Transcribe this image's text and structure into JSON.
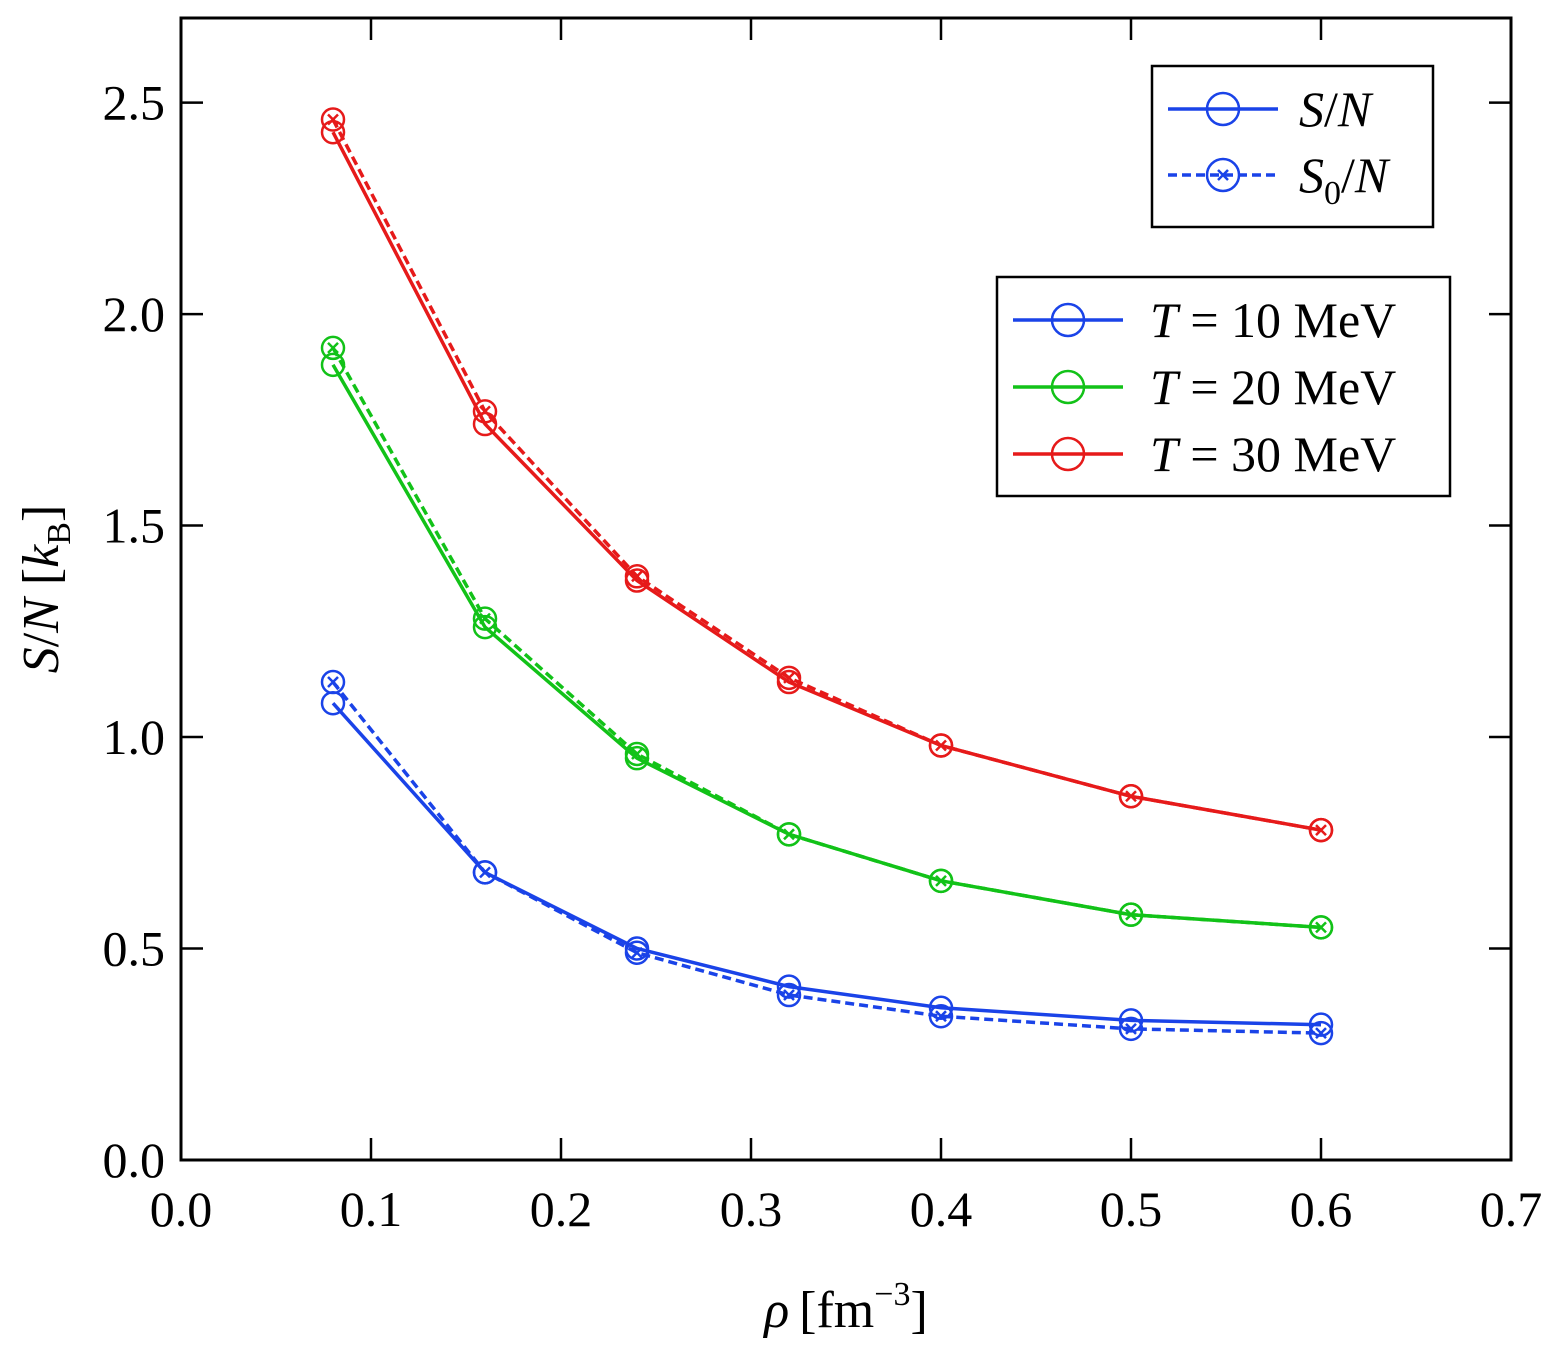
{
  "chart_data": {
    "type": "line",
    "title": "",
    "xlabel": {
      "symbol": "ρ",
      "unit_open": "[fm",
      "unit_sup": "−3",
      "unit_close": "]"
    },
    "ylabel": {
      "S": "S",
      "slash": "/",
      "N": "N",
      "open": " [",
      "k": "k",
      "sub": "B",
      "close": "]"
    },
    "xlim": [
      0.0,
      0.7
    ],
    "ylim": [
      0.0,
      2.7
    ],
    "xticks": [
      "0.0",
      "0.1",
      "0.2",
      "0.3",
      "0.4",
      "0.5",
      "0.6",
      "0.7"
    ],
    "yticks": [
      "0.0",
      "0.5",
      "1.0",
      "1.5",
      "2.0",
      "2.5"
    ],
    "x": [
      0.08,
      0.16,
      0.24,
      0.32,
      0.4,
      0.5,
      0.6
    ],
    "series": [
      {
        "name": "T = 10 MeV",
        "color": "#1a43e8",
        "quantity": "S/N",
        "values": [
          1.08,
          0.68,
          0.5,
          0.41,
          0.36,
          0.33,
          0.32
        ]
      },
      {
        "name": "T = 10 MeV",
        "color": "#1a43e8",
        "quantity": "S0/N",
        "values": [
          1.13,
          0.68,
          0.49,
          0.39,
          0.34,
          0.31,
          0.3
        ]
      },
      {
        "name": "T = 20 MeV",
        "color": "#12c218",
        "quantity": "S/N",
        "values": [
          1.88,
          1.26,
          0.95,
          0.77,
          0.66,
          0.58,
          0.55
        ]
      },
      {
        "name": "T = 20 MeV",
        "color": "#12c218",
        "quantity": "S0/N",
        "values": [
          1.92,
          1.28,
          0.96,
          0.77,
          0.66,
          0.58,
          0.55
        ]
      },
      {
        "name": "T = 30 MeV",
        "color": "#e61a1a",
        "quantity": "S/N",
        "values": [
          2.43,
          1.74,
          1.37,
          1.13,
          0.98,
          0.86,
          0.78
        ]
      },
      {
        "name": "T = 30 MeV",
        "color": "#e61a1a",
        "quantity": "S0/N",
        "values": [
          2.46,
          1.77,
          1.38,
          1.14,
          0.98,
          0.86,
          0.78
        ]
      }
    ],
    "legend_style": {
      "position": "top-right",
      "entries": [
        {
          "label": "S/N",
          "main": "S",
          "sub": "",
          "rest": "/N",
          "line": "solid",
          "marker": "circle",
          "color": "#1a43e8"
        },
        {
          "label": "S0/N",
          "main": "S",
          "sub": "0",
          "rest": "/N",
          "line": "dashed",
          "marker": "circle-x",
          "color": "#1a43e8"
        }
      ]
    },
    "legend_temp": {
      "position": "right",
      "entries": [
        {
          "label": "T = 10 MeV",
          "T": "T",
          "rest": " = 10 MeV",
          "color": "#1a43e8"
        },
        {
          "label": "T = 20 MeV",
          "T": "T",
          "rest": " = 20 MeV",
          "color": "#12c218"
        },
        {
          "label": "T = 30 MeV",
          "T": "T",
          "rest": " = 30 MeV",
          "color": "#e61a1a"
        }
      ]
    }
  }
}
